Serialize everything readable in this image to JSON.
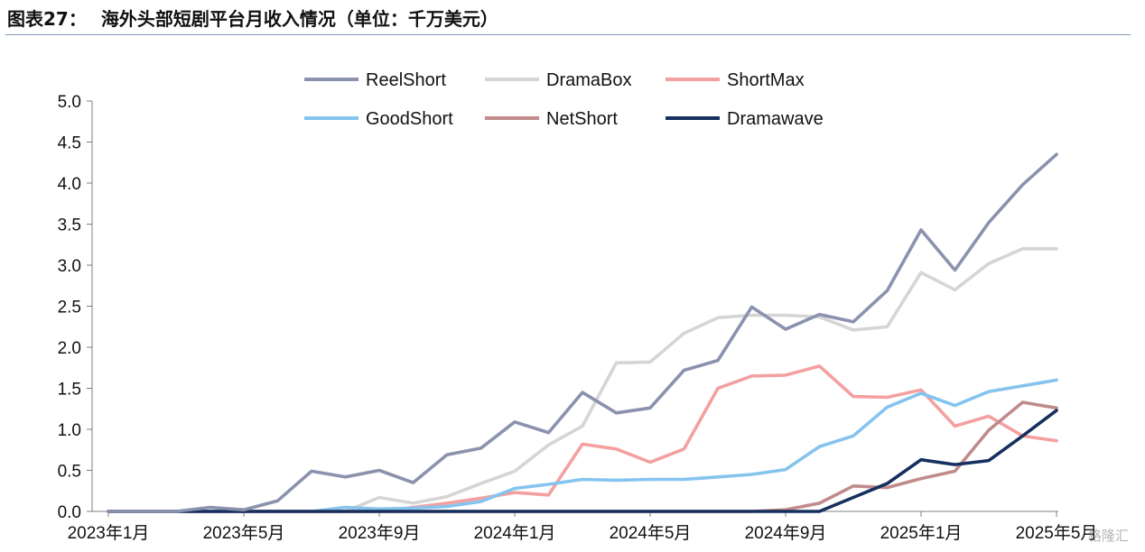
{
  "figure": {
    "prefix": "图表27：",
    "title": "海外头部短剧平台月收入情况（单位：千万美元）"
  },
  "watermark": "格隆汇",
  "chart_data": {
    "type": "line",
    "x": [
      "2023年1月",
      "2023年2月",
      "2023年3月",
      "2023年4月",
      "2023年5月",
      "2023年6月",
      "2023年7月",
      "2023年8月",
      "2023年9月",
      "2023年10月",
      "2023年11月",
      "2023年12月",
      "2024年1月",
      "2024年2月",
      "2024年3月",
      "2024年4月",
      "2024年5月",
      "2024年6月",
      "2024年7月",
      "2024年8月",
      "2024年9月",
      "2024年10月",
      "2024年11月",
      "2024年12月",
      "2025年1月",
      "2025年2月",
      "2025年3月",
      "2025年4月",
      "2025年5月"
    ],
    "x_tick_labels": [
      "2023年1月",
      "2023年5月",
      "2023年9月",
      "2024年1月",
      "2024年5月",
      "2024年9月",
      "2025年1月",
      "2025年5月"
    ],
    "x_tick_every": 4,
    "ylim": [
      0,
      5
    ],
    "y_ticks": [
      "0.0",
      "0.5",
      "1.0",
      "1.5",
      "2.0",
      "2.5",
      "3.0",
      "3.5",
      "4.0",
      "4.5",
      "5.0"
    ],
    "grid": false,
    "legend_position": "top",
    "series": [
      {
        "name": "ReelShort",
        "color": "#8a92ad",
        "values": [
          0,
          0,
          0,
          0.05,
          0.02,
          0.13,
          0.49,
          0.42,
          0.5,
          0.35,
          0.69,
          0.77,
          1.09,
          0.96,
          1.45,
          1.2,
          1.26,
          1.72,
          1.84,
          2.49,
          2.22,
          2.4,
          2.31,
          2.69,
          3.43,
          2.94,
          3.52,
          3.98,
          4.35
        ]
      },
      {
        "name": "DramaBox",
        "color": "#d5d5d5",
        "values": [
          0,
          0,
          0,
          0,
          0,
          0,
          0,
          0,
          0.17,
          0.1,
          0.18,
          0.34,
          0.49,
          0.81,
          1.04,
          1.81,
          1.82,
          2.17,
          2.36,
          2.39,
          2.39,
          2.37,
          2.21,
          2.25,
          2.91,
          2.7,
          3.02,
          3.2,
          3.2
        ]
      },
      {
        "name": "ShortMax",
        "color": "#f4a0a0",
        "values": [
          0,
          0,
          0,
          0,
          0,
          0,
          0,
          0,
          0,
          0.05,
          0.1,
          0.16,
          0.23,
          0.2,
          0.82,
          0.76,
          0.6,
          0.76,
          1.5,
          1.65,
          1.66,
          1.77,
          1.4,
          1.39,
          1.48,
          1.04,
          1.16,
          0.92,
          0.86
        ]
      },
      {
        "name": "GoodShort",
        "color": "#85c4ee",
        "values": [
          0,
          0,
          0,
          0,
          0,
          0,
          0,
          0.05,
          0.03,
          0.04,
          0.06,
          0.12,
          0.28,
          0.33,
          0.39,
          0.38,
          0.39,
          0.39,
          0.42,
          0.45,
          0.51,
          0.79,
          0.92,
          1.27,
          1.44,
          1.29,
          1.46,
          1.53,
          1.6
        ]
      },
      {
        "name": "NetShort",
        "color": "#c08b8b",
        "values": [
          0,
          0,
          0,
          0,
          0,
          0,
          0,
          0,
          0,
          0,
          0,
          0,
          0,
          0,
          0,
          0,
          0,
          0,
          0,
          0,
          0.02,
          0.1,
          0.31,
          0.29,
          0.4,
          0.49,
          0.99,
          1.33,
          1.26
        ]
      },
      {
        "name": "Dramawave",
        "color": "#16305e",
        "values": [
          0,
          0,
          0,
          0,
          0,
          0,
          0,
          0,
          0,
          0,
          0,
          0,
          0,
          0,
          0,
          0,
          0,
          0,
          0,
          0,
          0,
          0,
          0.17,
          0.34,
          0.63,
          0.57,
          0.62,
          0.92,
          1.23
        ]
      }
    ]
  }
}
